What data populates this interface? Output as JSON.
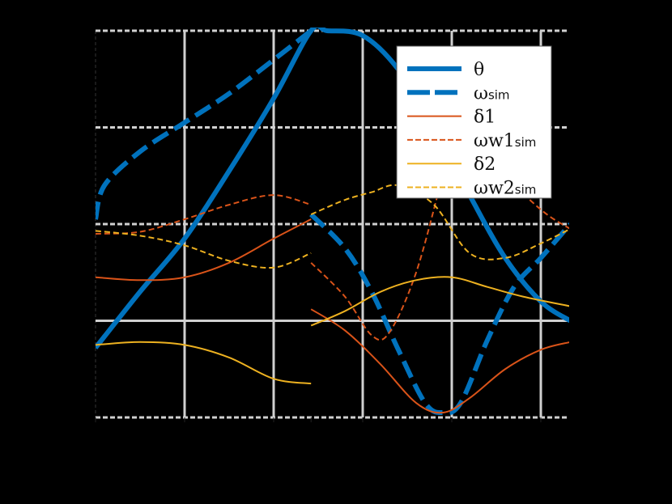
{
  "chart_data": {
    "type": "line",
    "title": "",
    "xlabel": "",
    "ylabel": "",
    "background": "#000000",
    "grid": true,
    "grid_color": "#d0d0d0",
    "legend_position": "upper right (inside)",
    "xlim": [
      0,
      5.33
    ],
    "ylim": [
      0,
      4
    ],
    "x_gridlines": [
      0,
      1,
      2,
      3,
      4,
      5
    ],
    "y_gridlines": [
      0,
      1,
      2,
      3,
      4
    ],
    "x_tick_labels": [],
    "y_tick_labels": [],
    "note": "Tick labels and axis labels are not visible (rendered black on black). Values are in gridline units read from the pixel grid. Curves have a discontinuity near x = 2.42.",
    "discontinuity_x": 2.42,
    "series": [
      {
        "name": "θ",
        "label_main": "θ",
        "label_sub": "",
        "color": "#0072BD",
        "style": "solid",
        "width": 6,
        "points": [
          [
            0,
            0.72
          ],
          [
            0.5,
            1.3
          ],
          [
            1,
            1.85
          ],
          [
            1.5,
            2.55
          ],
          [
            2,
            3.3
          ],
          [
            2.42,
            4.0
          ],
          [
            2.6,
            4.0
          ],
          [
            3.0,
            3.95
          ],
          [
            3.4,
            3.6
          ],
          [
            3.8,
            3.0
          ],
          [
            4.2,
            2.3
          ],
          [
            4.6,
            1.65
          ],
          [
            5.0,
            1.2
          ],
          [
            5.33,
            1.0
          ]
        ]
      },
      {
        "name": "ω_sim",
        "label_main": "ω",
        "label_sub": "sim",
        "color": "#0072BD",
        "style": "dashed",
        "width": 6,
        "segments": [
          [
            [
              0,
              2.05
            ],
            [
              0.1,
              2.4
            ],
            [
              0.5,
              2.75
            ],
            [
              1,
              3.05
            ],
            [
              1.5,
              3.35
            ],
            [
              2,
              3.7
            ],
            [
              2.42,
              4.0
            ]
          ],
          [
            [
              2.42,
              2.1
            ],
            [
              2.8,
              1.75
            ],
            [
              3.1,
              1.3
            ],
            [
              3.4,
              0.7
            ],
            [
              3.7,
              0.15
            ],
            [
              3.9,
              0.05
            ],
            [
              4.1,
              0.15
            ],
            [
              4.4,
              0.8
            ],
            [
              4.7,
              1.35
            ],
            [
              5.0,
              1.65
            ],
            [
              5.33,
              2.0
            ]
          ]
        ]
      },
      {
        "name": "δ1",
        "label_main": "δ1",
        "label_sub": "",
        "color": "#D95319",
        "style": "solid",
        "width": 2,
        "segments": [
          [
            [
              0,
              1.45
            ],
            [
              0.5,
              1.42
            ],
            [
              1,
              1.45
            ],
            [
              1.5,
              1.6
            ],
            [
              2,
              1.85
            ],
            [
              2.42,
              2.05
            ]
          ],
          [
            [
              2.42,
              1.12
            ],
            [
              2.8,
              0.9
            ],
            [
              3.2,
              0.55
            ],
            [
              3.6,
              0.15
            ],
            [
              3.9,
              0.05
            ],
            [
              4.2,
              0.2
            ],
            [
              4.6,
              0.5
            ],
            [
              5.0,
              0.7
            ],
            [
              5.33,
              0.78
            ]
          ]
        ]
      },
      {
        "name": "ωw1_sim",
        "label_main": "ωw1",
        "label_sub": "sim",
        "color": "#D95319",
        "style": "dashed",
        "width": 2,
        "segments": [
          [
            [
              0,
              1.9
            ],
            [
              0.5,
              1.92
            ],
            [
              1,
              2.05
            ],
            [
              1.5,
              2.2
            ],
            [
              2,
              2.3
            ],
            [
              2.42,
              2.2
            ]
          ],
          [
            [
              2.42,
              1.6
            ],
            [
              2.8,
              1.25
            ],
            [
              3.1,
              0.85
            ],
            [
              3.3,
              0.88
            ],
            [
              3.6,
              1.5
            ],
            [
              3.9,
              2.5
            ],
            [
              4.1,
              3.1
            ],
            [
              4.5,
              2.6
            ],
            [
              5.0,
              2.15
            ],
            [
              5.33,
              1.95
            ]
          ]
        ]
      },
      {
        "name": "δ2",
        "label_main": "δ2",
        "label_sub": "",
        "color": "#EDB120",
        "style": "solid",
        "width": 2,
        "segments": [
          [
            [
              0,
              0.75
            ],
            [
              0.5,
              0.78
            ],
            [
              1,
              0.75
            ],
            [
              1.5,
              0.62
            ],
            [
              2,
              0.4
            ],
            [
              2.42,
              0.35
            ]
          ],
          [
            [
              2.42,
              0.95
            ],
            [
              2.8,
              1.1
            ],
            [
              3.2,
              1.3
            ],
            [
              3.6,
              1.42
            ],
            [
              4.0,
              1.45
            ],
            [
              4.4,
              1.35
            ],
            [
              4.8,
              1.25
            ],
            [
              5.33,
              1.15
            ]
          ]
        ]
      },
      {
        "name": "ωw2_sim",
        "label_main": "ωw2",
        "label_sub": "sim",
        "color": "#EDB120",
        "style": "dashed",
        "width": 2,
        "segments": [
          [
            [
              0,
              1.93
            ],
            [
              0.5,
              1.88
            ],
            [
              1,
              1.78
            ],
            [
              1.5,
              1.62
            ],
            [
              2,
              1.55
            ],
            [
              2.42,
              1.7
            ]
          ],
          [
            [
              2.42,
              2.1
            ],
            [
              2.8,
              2.25
            ],
            [
              3.1,
              2.33
            ],
            [
              3.4,
              2.4
            ],
            [
              3.8,
              2.2
            ],
            [
              4.2,
              1.7
            ],
            [
              4.6,
              1.65
            ],
            [
              5.0,
              1.8
            ],
            [
              5.33,
              1.95
            ]
          ]
        ]
      }
    ]
  },
  "legend": {
    "entries": [
      {
        "main": "θ",
        "sub": ""
      },
      {
        "main": "ω",
        "sub": "sim"
      },
      {
        "main": "δ1",
        "sub": ""
      },
      {
        "main": "ωw1",
        "sub": "sim"
      },
      {
        "main": "δ2",
        "sub": ""
      },
      {
        "main": "ωw2",
        "sub": "sim"
      }
    ]
  }
}
